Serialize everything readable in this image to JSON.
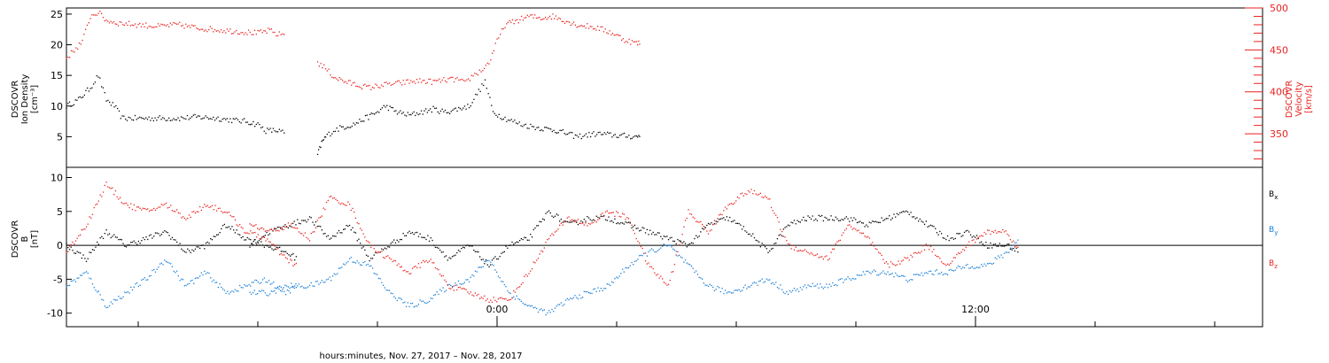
{
  "colors": {
    "black": "#000000",
    "blue": "#1a7fd6",
    "red": "#e8231f",
    "axis": "#000000"
  },
  "xlabel": "hours:minutes, Nov. 27, 2017 – Nov. 28, 2017",
  "chart_data": [
    {
      "type": "scatter",
      "panel": "plasma",
      "ylabel_left": [
        "DSCOVR",
        "Ion Density",
        "[cm⁻³]"
      ],
      "ylabel_right": [
        "DSCOVR",
        "Velocity",
        "[km/s]"
      ],
      "x_unit": "hours since 0:00 Nov. 28, 2017",
      "xlim": [
        -10.8,
        19.2
      ],
      "ylim_left": [
        0,
        26
      ],
      "ylim_right": [
        310,
        500
      ],
      "yticks_left": [
        5,
        10,
        15,
        20,
        25
      ],
      "yticks_right": [
        350,
        400,
        450,
        500
      ],
      "series": [
        {
          "axis": "left",
          "color": "black",
          "segments": [
            {
              "x": [
                -10.8,
                -10.5,
                -10.2,
                -10.0,
                -9.8,
                -9.6,
                -9.4,
                -9.0,
                -8.5,
                -8.0,
                -7.5,
                -7.0,
                -6.5,
                -6.3,
                -6.0,
                -5.8,
                -5.5,
                -5.3
              ],
              "y": [
                10,
                11,
                13,
                15,
                11,
                10,
                8,
                8,
                8,
                8,
                8.2,
                8,
                7.6,
                7.5,
                7,
                6,
                6,
                5.5
              ]
            },
            {
              "x": [
                -4.5,
                -4.4,
                -4.3,
                -4.1,
                -3.9,
                -3.6,
                -3.3,
                -3.0,
                -2.8,
                -2.5,
                -2.2,
                -1.9,
                -1.6,
                -1.3,
                -1.0,
                -0.7,
                -0.5,
                -0.3,
                -0.1,
                0.2,
                0.6,
                1.0,
                1.5,
                2.0,
                2.5,
                3.0,
                3.5,
                3.6
              ],
              "y": [
                2,
                4,
                5,
                6,
                6.5,
                7,
                8,
                9,
                10,
                9,
                8.5,
                9,
                9.5,
                9,
                9.5,
                10,
                12,
                14,
                9,
                8,
                7,
                6.5,
                6,
                5,
                5.5,
                5.2,
                5,
                5.2
              ]
            }
          ]
        },
        {
          "axis": "right",
          "color": "red",
          "segments": [
            {
              "x": [
                -10.8,
                -10.6,
                -10.4,
                -10.2,
                -10.0,
                -9.8,
                -9.5,
                -9.0,
                -8.5,
                -8.0,
                -7.5,
                -7.0,
                -6.5,
                -6.0,
                -5.7,
                -5.5,
                -5.3
              ],
              "y": [
                440,
                450,
                460,
                490,
                495,
                485,
                482,
                480,
                478,
                480,
                476,
                474,
                472,
                470,
                473,
                468,
                470
              ]
            },
            {
              "x": [
                -4.5,
                -4.3,
                -4.1,
                -3.8,
                -3.5,
                -3.2,
                -2.9,
                -2.5,
                -2.2,
                -1.9,
                -1.6,
                -1.3,
                -1.0,
                -0.8,
                -0.6,
                -0.4,
                -0.2,
                0.0,
                0.2,
                0.5,
                0.8,
                1.1,
                1.4,
                1.7,
                2.0,
                2.3,
                2.6,
                2.9,
                3.2,
                3.5,
                3.6
              ],
              "y": [
                435,
                428,
                418,
                412,
                408,
                405,
                408,
                410,
                412,
                413,
                412,
                414,
                415,
                410,
                420,
                425,
                435,
                460,
                480,
                485,
                490,
                488,
                490,
                485,
                480,
                478,
                475,
                470,
                462,
                458,
                458
              ]
            }
          ]
        }
      ]
    },
    {
      "type": "scatter",
      "panel": "magnetic",
      "ylabel_left": [
        "DSCOVR",
        "B",
        "[nT]"
      ],
      "x_unit": "hours since 0:00 Nov. 28, 2017",
      "xlim": [
        -10.8,
        19.2
      ],
      "ylim": [
        -12,
        11.5
      ],
      "yticks": [
        -10,
        -5,
        0,
        5,
        10
      ],
      "xticks": [
        {
          "x": 0,
          "label": "0:00"
        },
        {
          "x": 12,
          "label": "12:00"
        }
      ],
      "legend": [
        {
          "label": "Bx",
          "base": "B",
          "sub": "x",
          "color": "black"
        },
        {
          "label": "By",
          "base": "B",
          "sub": "y",
          "color": "blue"
        },
        {
          "label": "Bz",
          "base": "B",
          "sub": "z",
          "color": "red"
        }
      ],
      "series": [
        {
          "name": "Bx",
          "color": "black",
          "segments": [
            {
              "x": [
                -10.8,
                -10.3,
                -9.8,
                -9.3,
                -8.8,
                -8.3,
                -7.8,
                -7.3,
                -6.8,
                -6.3,
                -5.8,
                -5.3,
                -5.0
              ],
              "y": [
                0,
                -2,
                2,
                0,
                1,
                2,
                -1,
                0,
                3,
                1,
                0,
                -1,
                -2
              ]
            },
            {
              "x": [
                -6.2,
                -5.7,
                -5.2,
                -4.7,
                -4.2,
                -3.7,
                -3.2,
                -2.7,
                -2.2,
                -1.7,
                -1.2,
                -0.7,
                -0.2,
                0.3,
                0.8,
                1.3,
                1.8,
                2.3,
                2.8,
                3.3,
                3.8,
                4.3,
                4.8,
                5.3,
                5.8,
                6.3,
                6.8,
                7.3,
                7.8,
                8.3,
                8.8,
                9.3,
                9.8,
                10.3,
                10.8,
                11.3,
                11.8,
                12.3,
                12.8,
                13.1
              ],
              "y": [
                0,
                2,
                3,
                4,
                1,
                3,
                -2,
                0,
                2,
                1,
                -2,
                0,
                -3,
                0,
                1,
                5,
                3,
                4,
                4,
                3,
                2,
                1,
                0,
                3,
                4,
                2,
                -1,
                3,
                4,
                4,
                4,
                3,
                4,
                5,
                3,
                1,
                2,
                0,
                0,
                -1
              ]
            }
          ]
        },
        {
          "name": "By",
          "color": "blue",
          "segments": [
            {
              "x": [
                -10.8,
                -10.3,
                -9.8,
                -9.3,
                -8.8,
                -8.3,
                -7.8,
                -7.3,
                -6.8,
                -6.3,
                -5.8,
                -5.3,
                -5.0
              ],
              "y": [
                -6,
                -4,
                -9,
                -7,
                -5,
                -2,
                -6,
                -4,
                -7,
                -6,
                -5,
                -7,
                -6
              ]
            },
            {
              "x": [
                -6.2,
                -5.7,
                -5.2,
                -4.7,
                -4.2,
                -3.7,
                -3.2,
                -2.7,
                -2.2,
                -1.7,
                -1.2,
                -0.7,
                -0.2,
                0.3,
                0.8,
                1.3,
                1.8,
                2.3,
                2.8,
                3.3,
                3.8,
                4.3,
                4.8,
                5.3,
                5.8,
                6.3,
                6.8,
                7.3,
                7.8,
                8.3,
                8.8,
                9.3,
                9.8,
                10.3,
                10.8,
                11.3,
                11.8,
                12.3,
                12.8,
                13.1
              ],
              "y": [
                -7,
                -7,
                -6,
                -6,
                -5,
                -2,
                -3,
                -7,
                -9,
                -8,
                -6,
                -5,
                -2,
                -7,
                -9,
                -10,
                -8,
                -7,
                -6,
                -3,
                -1,
                0,
                -3,
                -6,
                -7,
                -6,
                -5,
                -7,
                -6,
                -6,
                -5,
                -4,
                -4,
                -5,
                -4,
                -4,
                -3,
                -3,
                -1,
                1
              ]
            }
          ]
        },
        {
          "name": "Bz",
          "color": "red",
          "segments": [
            {
              "x": [
                -10.8,
                -10.3,
                -9.8,
                -9.3,
                -8.8,
                -8.3,
                -7.8,
                -7.3,
                -6.8,
                -6.3,
                -5.8,
                -5.3,
                -5.0
              ],
              "y": [
                -1,
                3,
                9,
                6,
                5,
                6,
                4,
                6,
                5,
                2,
                1,
                -2,
                -3
              ]
            },
            {
              "x": [
                -6.2,
                -5.7,
                -5.2,
                -4.7,
                -4.2,
                -3.7,
                -3.2,
                -2.7,
                -2.2,
                -1.7,
                -1.2,
                -0.7,
                -0.2,
                0.3,
                0.8,
                1.3,
                1.8,
                2.3,
                2.8,
                3.3,
                3.8,
                4.3,
                4.8,
                5.3,
                5.8,
                6.3,
                6.8,
                7.3,
                7.8,
                8.3,
                8.8,
                9.3,
                9.8,
                10.3,
                10.8,
                11.3,
                11.8,
                12.3,
                12.8,
                13.1
              ],
              "y": [
                3,
                2,
                3,
                1,
                7,
                6,
                0,
                -2,
                -4,
                -2,
                -6,
                -7,
                -8,
                -8,
                -4,
                1,
                4,
                3,
                5,
                4,
                -3,
                -6,
                5,
                2,
                6,
                8,
                7,
                0,
                -1,
                -2,
                3,
                1,
                -3,
                -2,
                0,
                -3,
                0,
                2,
                2,
                -1
              ]
            }
          ]
        }
      ]
    }
  ]
}
